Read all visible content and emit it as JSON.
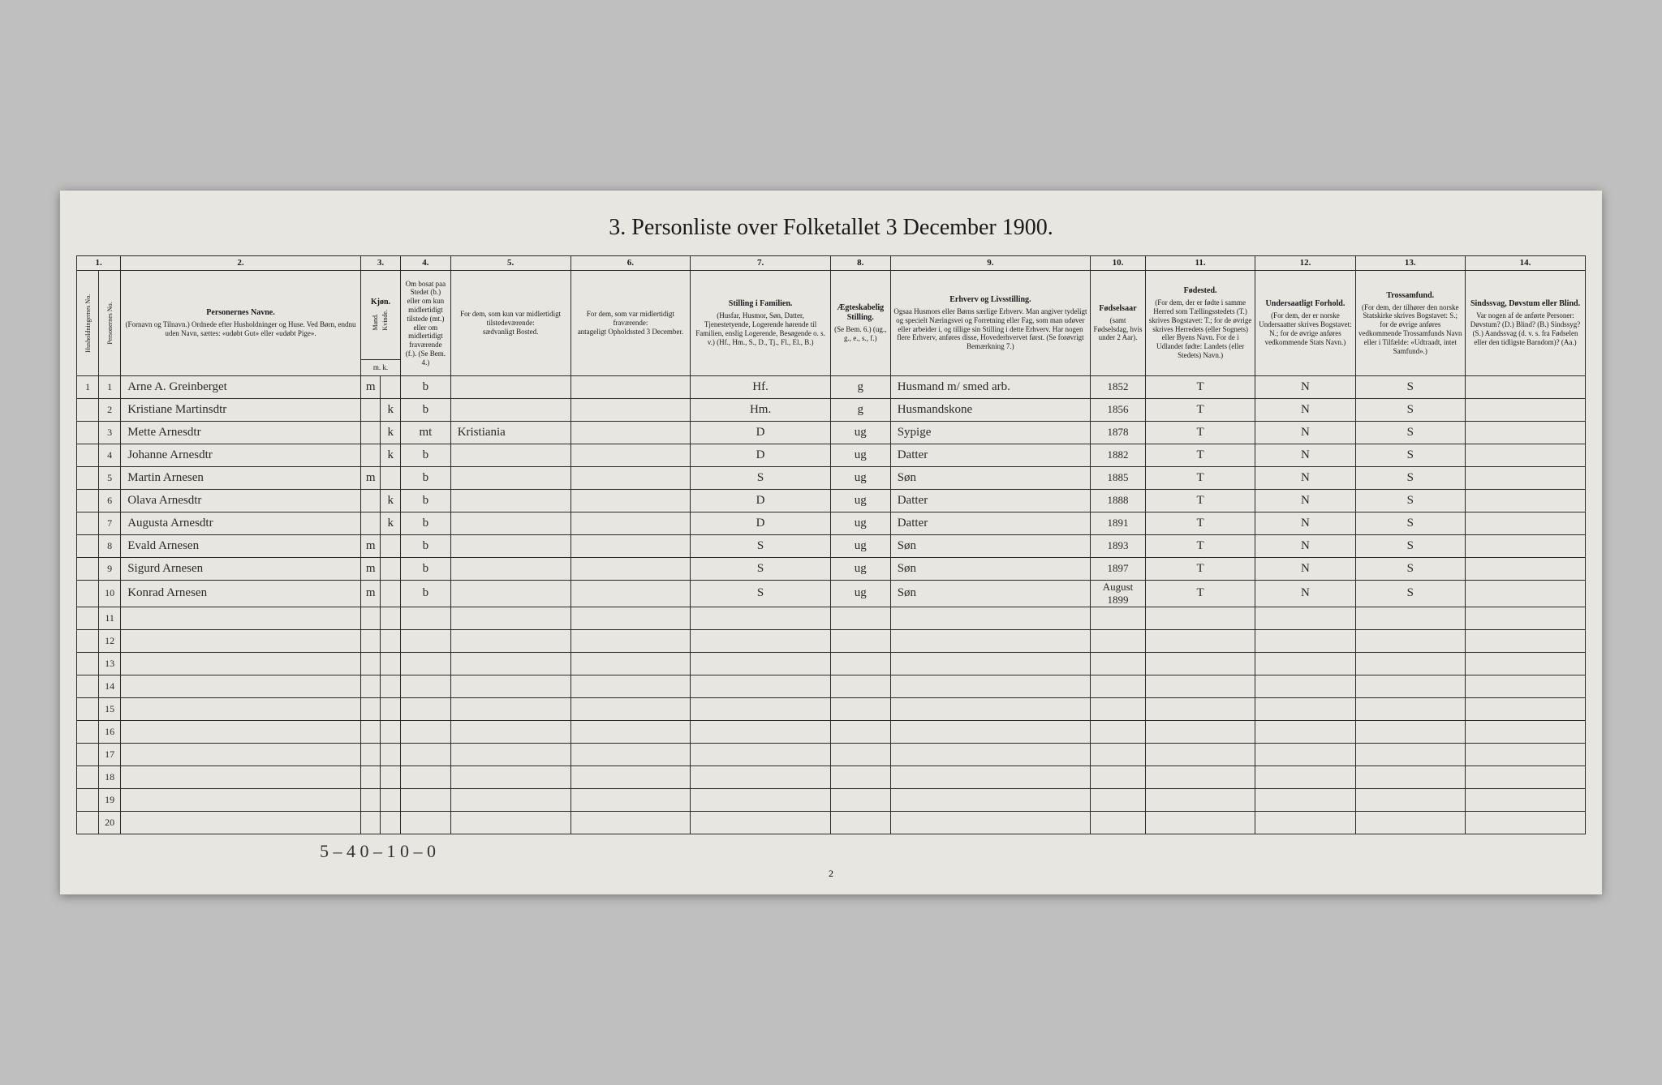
{
  "title": "3.  Personliste over Folketallet 3 December 1900.",
  "colnums": [
    "1.",
    "2.",
    "3.",
    "4.",
    "5.",
    "6.",
    "7.",
    "8.",
    "9.",
    "10.",
    "11.",
    "12.",
    "13.",
    "14."
  ],
  "headers": {
    "hnum": "Husholdningernes No.",
    "pnum": "Personernes No.",
    "name_label": "Personernes Navne.",
    "name_sub": "(Fornavn og Tilnavn.)\nOrdnede efter Husholdninger og Huse.\nVed Børn, endnu uden Navn, sættes: «udøbt Gut» eller «udøbt Pige».",
    "sex_label": "Kjøn.",
    "sex_m": "Mand.",
    "sex_k": "Kvinde.",
    "sex_mk": "m.  k.",
    "status_label": "Om bosat paa Stedet (b.) eller om kun midlertidigt tilstede (mt.) eller om midlertidigt fraværende (f.). (Se Bem. 4.)",
    "temp_away_label": "For dem, som kun var midlertidigt tilstedeværende:",
    "temp_away_sub": "sædvanligt Bosted.",
    "temp_pres_label": "For dem, som var midlertidigt fraværende:",
    "temp_pres_sub": "antageligt Opholdssted 3 December.",
    "famrel_label": "Stilling i Familien.",
    "famrel_sub": "(Husfar, Husmor, Søn, Datter, Tjenestetyende, Logerende hørende til Familien, enslig Logerende, Besøgende o. s. v.)\n(Hf., Hm., S., D., Tj., Fl., El., B.)",
    "marital_label": "Ægteskabelig Stilling.",
    "marital_sub": "(Se Bem. 6.)\n(ug., g., e., s., f.)",
    "occup_label": "Erhverv og Livsstilling.",
    "occup_sub": "Ogsaa Husmors eller Børns særlige Erhverv. Man angiver tydeligt og specielt Næringsvei og Forretning eller Fag, som man udøver eller arbeider i, og tillige sin Stilling i dette Erhverv. Har nogen flere Erhverv, anføres disse, Hovederhvervet først.\n(Se forøvrigt Bemærkning 7.)",
    "birth_label": "Fødselsaar",
    "birth_sub": "(samt Fødselsdag, hvis under 2 Aar).",
    "bplace_label": "Fødested.",
    "bplace_sub": "(For dem, der er fødte i samme Herred som Tællingsstedets (T.) skrives Bogstavet: T.; for de øvrige skrives Herredets (eller Sognets) eller Byens Navn. For de i Udlandet fødte: Landets (eller Stedets) Navn.)",
    "citizen_label": "Undersaatligt Forhold.",
    "citizen_sub": "(For dem, der er norske Undersaatter skrives Bogstavet: N.; for de øvrige anføres vedkommende Stats Navn.)",
    "relig_label": "Trossamfund.",
    "relig_sub": "(For dem, der tilhører den norske Statskirke skrives Bogstavet: S.; for de øvrige anføres vedkommende Trossamfunds Navn eller i Tilfælde: «Udtraadt, intet Samfund».)",
    "infirm_label": "Sindssvag, Døvstum eller Blind.",
    "infirm_sub": "Var nogen af de anførte Personer: Døvstum? (D.) Blind? (B.) Sindssyg? (S.) Aandssvag (d. v. s. fra Fødselen eller den tidligste Barndom)? (Aa.)"
  },
  "rows": [
    {
      "h": "1",
      "p": "1",
      "name": "Arne A. Greinberget",
      "m": "m",
      "k": "",
      "st": "b",
      "away": "",
      "pres": "",
      "fam": "Hf.",
      "mar": "g",
      "occ": "Husmand m/ smed arb.",
      "birth": "1852",
      "bpl": "T",
      "cit": "N",
      "rel": "S",
      "inf": ""
    },
    {
      "h": "",
      "p": "2",
      "name": "Kristiane Martinsdtr",
      "m": "",
      "k": "k",
      "st": "b",
      "away": "",
      "pres": "",
      "fam": "Hm.",
      "mar": "g",
      "occ": "Husmandskone",
      "birth": "1856",
      "bpl": "T",
      "cit": "N",
      "rel": "S",
      "inf": ""
    },
    {
      "h": "",
      "p": "3",
      "name": "Mette Arnesdtr",
      "m": "",
      "k": "k",
      "st": "mt",
      "away": "Kristiania",
      "pres": "",
      "fam": "D",
      "mar": "ug",
      "occ": "Sypige",
      "birth": "1878",
      "bpl": "T",
      "cit": "N",
      "rel": "S",
      "inf": ""
    },
    {
      "h": "",
      "p": "4",
      "name": "Johanne Arnesdtr",
      "m": "",
      "k": "k",
      "st": "b",
      "away": "",
      "pres": "",
      "fam": "D",
      "mar": "ug",
      "occ": "Datter",
      "birth": "1882",
      "bpl": "T",
      "cit": "N",
      "rel": "S",
      "inf": ""
    },
    {
      "h": "",
      "p": "5",
      "name": "Martin Arnesen",
      "m": "m",
      "k": "",
      "st": "b",
      "away": "",
      "pres": "",
      "fam": "S",
      "mar": "ug",
      "occ": "Søn",
      "birth": "1885",
      "bpl": "T",
      "cit": "N",
      "rel": "S",
      "inf": ""
    },
    {
      "h": "",
      "p": "6",
      "name": "Olava Arnesdtr",
      "m": "",
      "k": "k",
      "st": "b",
      "away": "",
      "pres": "",
      "fam": "D",
      "mar": "ug",
      "occ": "Datter",
      "birth": "1888",
      "bpl": "T",
      "cit": "N",
      "rel": "S",
      "inf": ""
    },
    {
      "h": "",
      "p": "7",
      "name": "Augusta Arnesdtr",
      "m": "",
      "k": "k",
      "st": "b",
      "away": "",
      "pres": "",
      "fam": "D",
      "mar": "ug",
      "occ": "Datter",
      "birth": "1891",
      "bpl": "T",
      "cit": "N",
      "rel": "S",
      "inf": ""
    },
    {
      "h": "",
      "p": "8",
      "name": "Evald Arnesen",
      "m": "m",
      "k": "",
      "st": "b",
      "away": "",
      "pres": "",
      "fam": "S",
      "mar": "ug",
      "occ": "Søn",
      "birth": "1893",
      "bpl": "T",
      "cit": "N",
      "rel": "S",
      "inf": ""
    },
    {
      "h": "",
      "p": "9",
      "name": "Sigurd Arnesen",
      "m": "m",
      "k": "",
      "st": "b",
      "away": "",
      "pres": "",
      "fam": "S",
      "mar": "ug",
      "occ": "Søn",
      "birth": "1897",
      "bpl": "T",
      "cit": "N",
      "rel": "S",
      "inf": ""
    },
    {
      "h": "",
      "p": "10",
      "name": "Konrad Arnesen",
      "m": "m",
      "k": "",
      "st": "b",
      "away": "",
      "pres": "",
      "fam": "S",
      "mar": "ug",
      "occ": "Søn",
      "birth": "August 1899",
      "bpl": "T",
      "cit": "N",
      "rel": "S",
      "inf": ""
    }
  ],
  "empty_rows": [
    "11",
    "12",
    "13",
    "14",
    "15",
    "16",
    "17",
    "18",
    "19",
    "20"
  ],
  "footer_note": "5 – 4  0 – 1    0 – 0",
  "page_num": "2",
  "colors": {
    "page_bg": "#e8e6e0",
    "body_bg": "#bfbfbf",
    "border": "#2a2a2a",
    "text": "#1a1a1a"
  }
}
